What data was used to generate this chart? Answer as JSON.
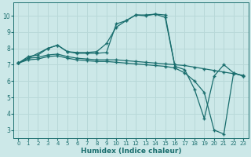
{
  "xlabel": "Humidex (Indice chaleur)",
  "bg_color": "#cce8e8",
  "line_color": "#1a6e6e",
  "grid_color": "#b8d8d8",
  "xlim": [
    -0.5,
    23.5
  ],
  "ylim": [
    2.5,
    10.8
  ],
  "yticks": [
    3,
    4,
    5,
    6,
    7,
    8,
    9,
    10
  ],
  "xticks": [
    0,
    1,
    2,
    3,
    4,
    5,
    6,
    7,
    8,
    9,
    10,
    11,
    12,
    13,
    14,
    15,
    16,
    17,
    18,
    19,
    20,
    21,
    22,
    23
  ],
  "lines": [
    {
      "x": [
        0,
        1,
        2,
        3,
        4,
        5,
        6,
        7,
        8,
        9,
        10,
        11,
        12,
        13,
        14,
        15,
        16
      ],
      "y": [
        7.1,
        7.5,
        7.6,
        8.0,
        8.2,
        7.8,
        7.75,
        7.75,
        7.8,
        8.3,
        9.3,
        9.7,
        10.05,
        10.05,
        10.1,
        9.9,
        6.9
      ]
    },
    {
      "x": [
        0,
        1,
        2,
        3,
        4,
        5,
        6,
        7,
        8,
        9,
        10,
        11,
        12,
        13,
        14,
        15,
        16,
        17,
        18,
        19,
        20,
        21,
        22,
        23
      ],
      "y": [
        7.1,
        7.4,
        7.45,
        7.6,
        7.65,
        7.5,
        7.4,
        7.35,
        7.3,
        7.3,
        7.3,
        7.25,
        7.2,
        7.15,
        7.1,
        7.05,
        7.0,
        6.95,
        6.85,
        6.75,
        6.65,
        6.55,
        6.45,
        6.35
      ]
    },
    {
      "x": [
        0,
        1,
        2,
        3,
        4,
        5,
        6,
        7,
        8,
        9,
        10,
        11,
        12,
        13,
        14,
        15,
        16,
        17,
        18,
        19,
        20,
        21,
        22,
        23
      ],
      "y": [
        7.1,
        7.3,
        7.35,
        7.5,
        7.55,
        7.4,
        7.3,
        7.25,
        7.2,
        7.2,
        7.15,
        7.1,
        7.05,
        7.0,
        6.95,
        6.9,
        6.8,
        6.5,
        6.0,
        5.3,
        3.0,
        2.75,
        6.5,
        6.3
      ]
    },
    {
      "x": [
        0,
        3,
        4,
        5,
        6,
        7,
        8,
        9,
        10,
        11,
        12,
        13,
        14,
        15,
        16,
        17,
        18,
        19,
        20,
        21,
        22,
        23
      ],
      "y": [
        7.1,
        8.0,
        8.2,
        7.8,
        7.7,
        7.7,
        7.7,
        7.75,
        9.5,
        9.7,
        10.05,
        10.0,
        10.1,
        10.05,
        6.9,
        6.7,
        5.5,
        3.7,
        6.3,
        7.0,
        6.5,
        6.3
      ]
    }
  ]
}
